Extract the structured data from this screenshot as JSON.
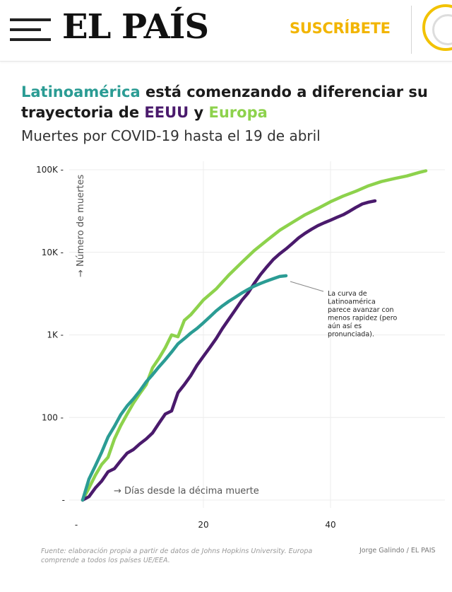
{
  "header": {
    "logo": "EL PAÍS",
    "subscribe_label": "SUSCRÍBETE"
  },
  "colors": {
    "latam": "#2b9c94",
    "eeuu": "#4a1a6c",
    "europa": "#8dd24c",
    "subscribe": "#f2b500"
  },
  "chart_data": {
    "type": "line",
    "title_parts": {
      "latam": "Latinoamérica",
      "mid": " está comenzando a diferenciar su trayectoria de ",
      "eeuu": "EEUU",
      "and": " y ",
      "europa": "Europa"
    },
    "subtitle": "Muertes por COVID-19 hasta el 19 de abril",
    "xlabel": "→ Días desde la décima muerte",
    "ylabel": "→ Número de muertes",
    "y_scale": "log",
    "ylim": [
      10,
      100000
    ],
    "xlim": [
      0,
      56
    ],
    "y_ticks": [
      {
        "value": 100000,
        "label": "100K"
      },
      {
        "value": 10000,
        "label": "10K"
      },
      {
        "value": 1000,
        "label": "1K"
      },
      {
        "value": 100,
        "label": "100"
      },
      {
        "value": 10,
        "label": "-"
      }
    ],
    "x_ticks": [
      {
        "value": 0,
        "label": "-"
      },
      {
        "value": 20,
        "label": "20"
      },
      {
        "value": 40,
        "label": "40"
      }
    ],
    "series": [
      {
        "name": "Europa",
        "color": "#8dd24c",
        "points": [
          [
            1,
            10
          ],
          [
            2,
            14
          ],
          [
            3,
            20
          ],
          [
            4,
            27
          ],
          [
            5,
            33
          ],
          [
            6,
            55
          ],
          [
            7,
            80
          ],
          [
            8,
            110
          ],
          [
            9,
            150
          ],
          [
            10,
            195
          ],
          [
            11,
            250
          ],
          [
            12,
            400
          ],
          [
            13,
            520
          ],
          [
            14,
            700
          ],
          [
            15,
            1000
          ],
          [
            16,
            950
          ],
          [
            17,
            1500
          ],
          [
            18,
            1750
          ],
          [
            19,
            2150
          ],
          [
            20,
            2650
          ],
          [
            22,
            3600
          ],
          [
            24,
            5300
          ],
          [
            26,
            7500
          ],
          [
            28,
            10500
          ],
          [
            30,
            14000
          ],
          [
            32,
            18500
          ],
          [
            34,
            23000
          ],
          [
            36,
            28500
          ],
          [
            38,
            34000
          ],
          [
            40,
            41000
          ],
          [
            42,
            48000
          ],
          [
            44,
            55000
          ],
          [
            46,
            64000
          ],
          [
            48,
            72000
          ],
          [
            50,
            78000
          ],
          [
            52,
            84000
          ],
          [
            54,
            93000
          ],
          [
            55,
            97000
          ]
        ]
      },
      {
        "name": "EEUU",
        "color": "#4a1a6c",
        "points": [
          [
            1,
            10
          ],
          [
            2,
            11
          ],
          [
            3,
            14
          ],
          [
            4,
            17
          ],
          [
            5,
            22
          ],
          [
            6,
            24
          ],
          [
            7,
            30
          ],
          [
            8,
            37
          ],
          [
            9,
            41
          ],
          [
            10,
            48
          ],
          [
            11,
            55
          ],
          [
            12,
            65
          ],
          [
            13,
            85
          ],
          [
            14,
            110
          ],
          [
            15,
            120
          ],
          [
            16,
            200
          ],
          [
            17,
            250
          ],
          [
            18,
            320
          ],
          [
            19,
            430
          ],
          [
            20,
            550
          ],
          [
            21,
            700
          ],
          [
            22,
            900
          ],
          [
            23,
            1200
          ],
          [
            24,
            1550
          ],
          [
            25,
            2000
          ],
          [
            26,
            2600
          ],
          [
            27,
            3200
          ],
          [
            28,
            4200
          ],
          [
            29,
            5400
          ],
          [
            30,
            6700
          ],
          [
            31,
            8200
          ],
          [
            32,
            9600
          ],
          [
            33,
            11000
          ],
          [
            34,
            12800
          ],
          [
            35,
            15000
          ],
          [
            36,
            17000
          ],
          [
            37,
            19000
          ],
          [
            38,
            21000
          ],
          [
            39,
            22800
          ],
          [
            40,
            24500
          ],
          [
            41,
            26500
          ],
          [
            42,
            28500
          ],
          [
            43,
            31500
          ],
          [
            44,
            35000
          ],
          [
            45,
            38500
          ],
          [
            46,
            40500
          ],
          [
            47,
            42000
          ]
        ]
      },
      {
        "name": "Latinoamérica",
        "color": "#2b9c94",
        "points": [
          [
            1,
            10
          ],
          [
            2,
            18
          ],
          [
            3,
            26
          ],
          [
            4,
            38
          ],
          [
            5,
            58
          ],
          [
            6,
            78
          ],
          [
            7,
            108
          ],
          [
            8,
            138
          ],
          [
            9,
            168
          ],
          [
            10,
            210
          ],
          [
            11,
            270
          ],
          [
            12,
            330
          ],
          [
            13,
            410
          ],
          [
            14,
            500
          ],
          [
            15,
            620
          ],
          [
            16,
            780
          ],
          [
            17,
            900
          ],
          [
            18,
            1050
          ],
          [
            19,
            1200
          ],
          [
            20,
            1400
          ],
          [
            21,
            1650
          ],
          [
            22,
            1950
          ],
          [
            23,
            2250
          ],
          [
            24,
            2550
          ],
          [
            25,
            2850
          ],
          [
            26,
            3200
          ],
          [
            27,
            3550
          ],
          [
            28,
            3900
          ],
          [
            29,
            4200
          ],
          [
            30,
            4500
          ],
          [
            31,
            4800
          ],
          [
            32,
            5100
          ],
          [
            33,
            5200
          ]
        ]
      }
    ],
    "annotation": {
      "lines": [
        "La curva de",
        "Latinoamérica",
        "parece avanzar con",
        "menos rapidez (pero",
        "aún así es",
        "pronunciada)."
      ]
    }
  },
  "footer": {
    "source": "Fuente: elaboración propia a partir de datos de Johns Hopkins University. Europa comprende a todos los países UE/EEA.",
    "author": "Jorge Galindo / EL PAIS"
  }
}
